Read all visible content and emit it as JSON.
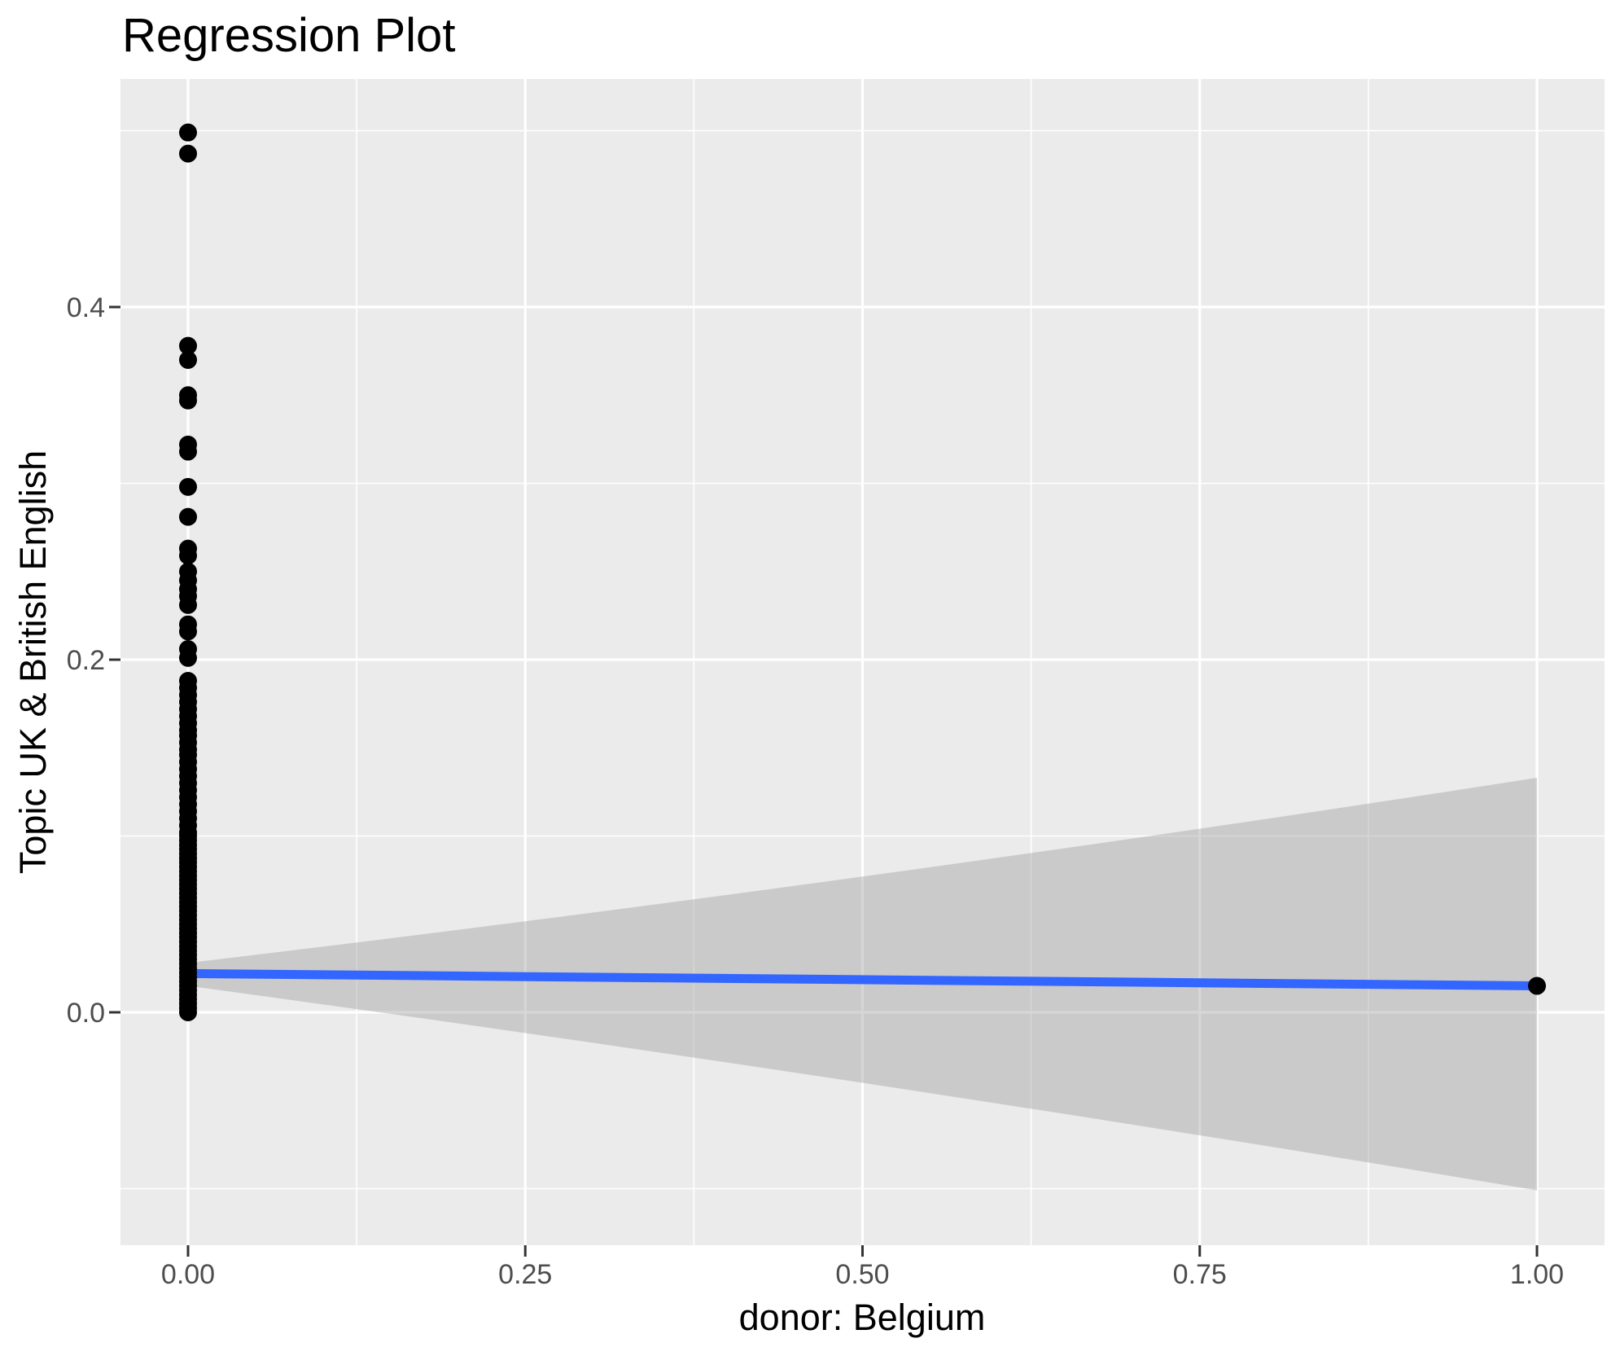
{
  "title": "Regression Plot",
  "chart_data": {
    "type": "scatter",
    "title": "Regression Plot",
    "xlabel": "donor: Belgium",
    "ylabel": "Topic UK & British English",
    "x_ticks": [
      0,
      0.25,
      0.5,
      0.75,
      1
    ],
    "x_tick_labels": [
      "0.00",
      "0.25",
      "0.50",
      "0.75",
      "1.00"
    ],
    "y_ticks": [
      0,
      0.2,
      0.4
    ],
    "y_tick_labels": [
      "0.0",
      "0.2",
      "0.4"
    ],
    "x_minor_ticks": [
      0.125,
      0.375,
      0.625,
      0.875
    ],
    "y_minor_ticks": [
      -0.1,
      0.1,
      0.3,
      0.5
    ],
    "xlim": [
      -0.05,
      1.05
    ],
    "ylim": [
      -0.131,
      0.53
    ],
    "grid": true,
    "legend": "none",
    "points_x0_y": [
      0.499,
      0.487,
      0.378,
      0.37,
      0.35,
      0.347,
      0.322,
      0.318,
      0.298,
      0.281,
      0.263,
      0.259,
      0.25,
      0.245,
      0.24,
      0.236,
      0.231,
      0.22,
      0.216,
      0.206,
      0.201,
      0.188,
      0.184,
      0.18,
      0.176,
      0.172,
      0.168,
      0.164,
      0.16,
      0.157,
      0.153,
      0.149,
      0.146,
      0.142,
      0.138,
      0.134,
      0.13,
      0.126,
      0.122,
      0.118,
      0.114,
      0.11,
      0.106,
      0.102,
      0.1,
      0.0975,
      0.095,
      0.0925,
      0.09,
      0.0875,
      0.085,
      0.0825,
      0.08,
      0.0775,
      0.075,
      0.0725,
      0.07,
      0.0675,
      0.065,
      0.0625,
      0.06,
      0.0575,
      0.055,
      0.0525,
      0.05,
      0.0475,
      0.045,
      0.0425,
      0.04,
      0.0375,
      0.035,
      0.0325,
      0.03,
      0.0275,
      0.025,
      0.0225,
      0.02,
      0.0175,
      0.015,
      0.0125,
      0.01,
      0.0075,
      0.005,
      0.0025,
      0.0
    ],
    "outlier_point": {
      "x": 1.0,
      "y": 0.015
    },
    "regression_line": {
      "x": [
        0,
        1
      ],
      "y": [
        0.022,
        0.015
      ],
      "color": "#3366FF"
    },
    "confidence_band": {
      "x": [
        0,
        0.5,
        1
      ],
      "upper": [
        0.028,
        0.077,
        0.133
      ],
      "lower": [
        0.015,
        -0.04,
        -0.101
      ]
    },
    "colors": {
      "panel": "#EBEBEB",
      "grid": "#FFFFFF",
      "point": "#000000",
      "ribbon": "#999999",
      "ribbon_opacity": 0.4,
      "tick_text": "#4D4D4D",
      "tick_mark": "#333333"
    }
  }
}
